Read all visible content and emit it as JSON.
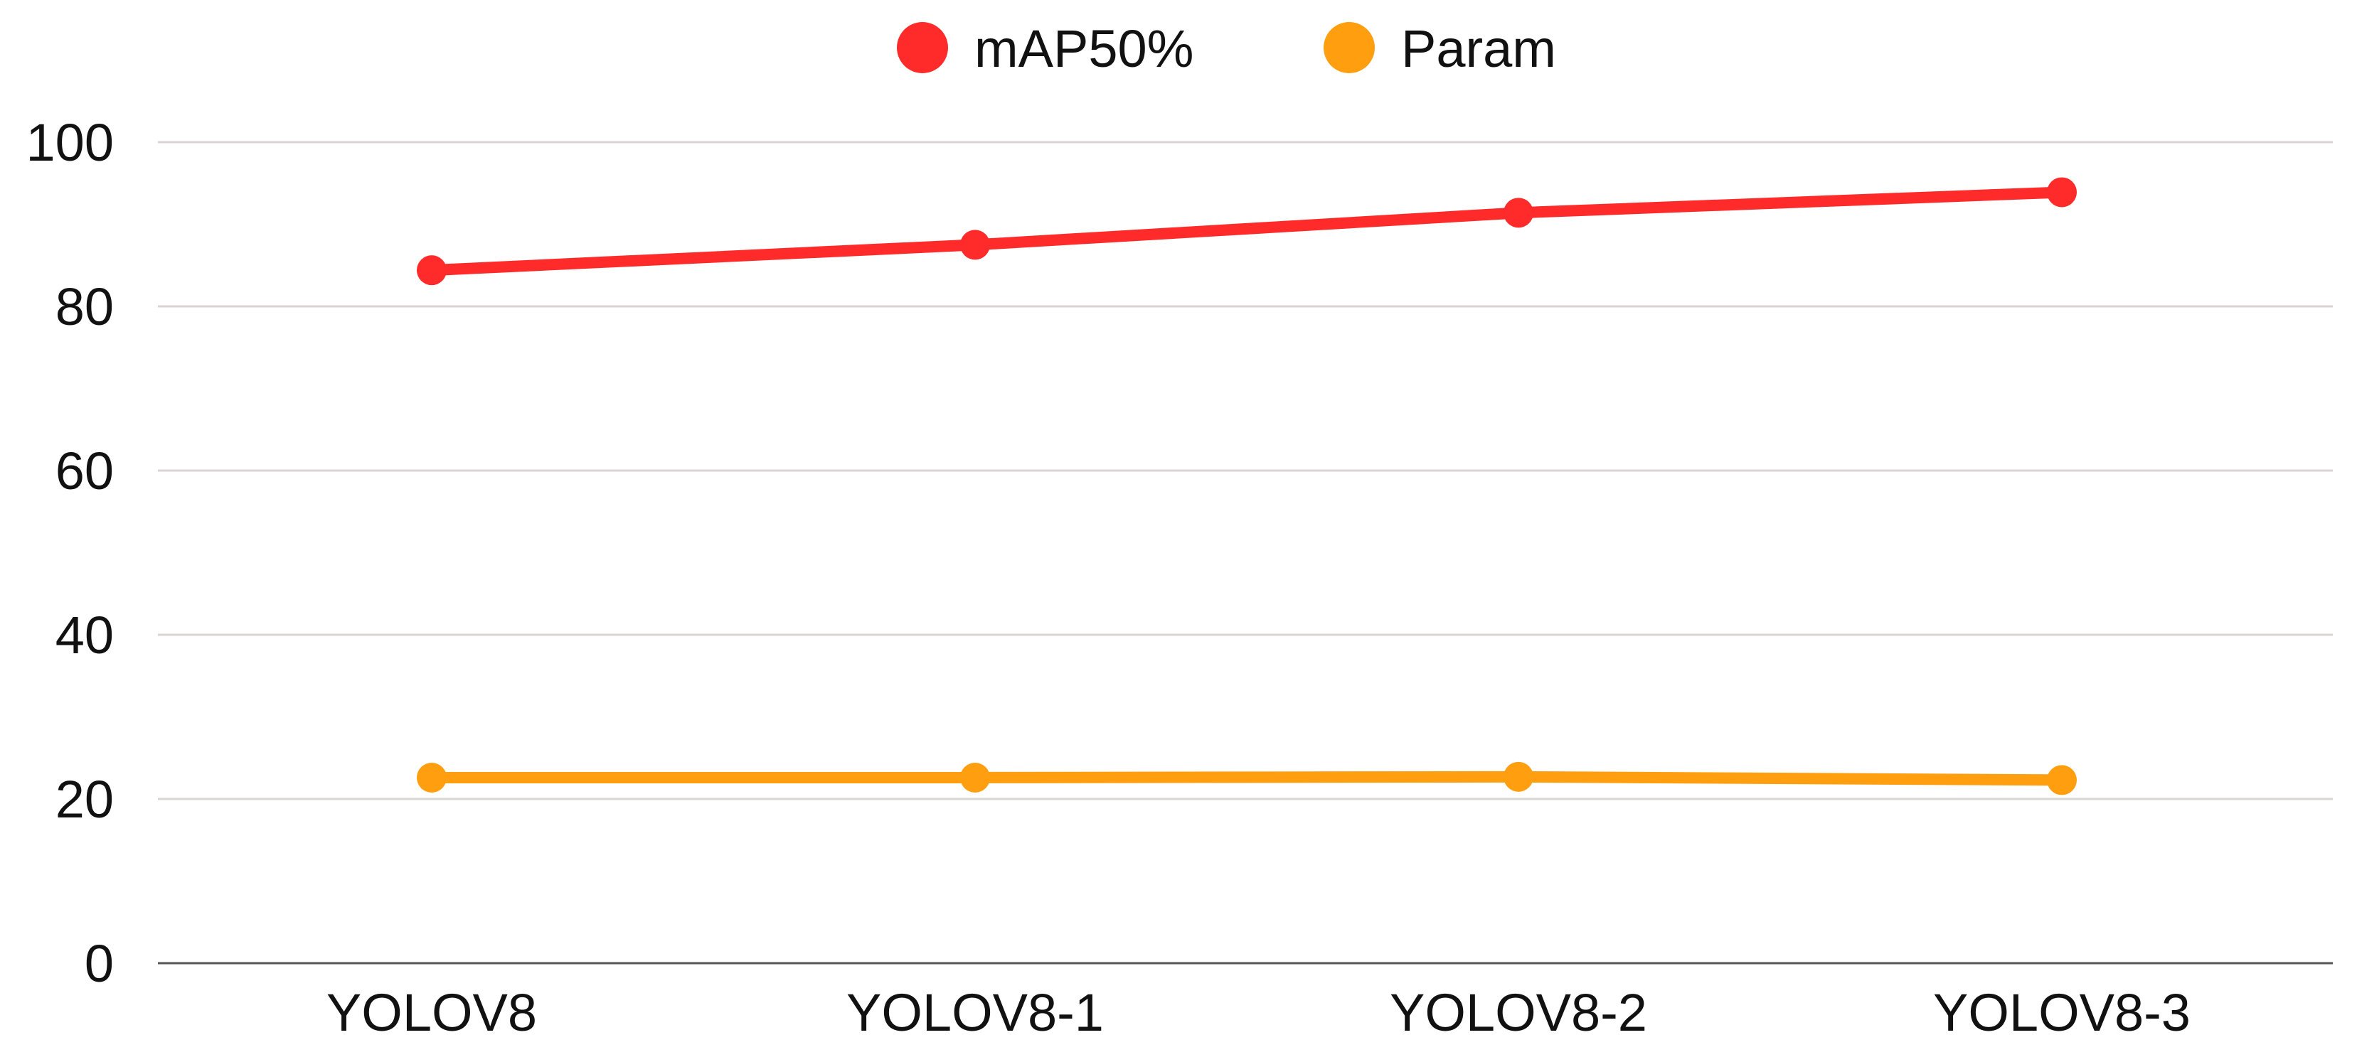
{
  "chart_data": {
    "type": "line",
    "categories": [
      "YOLOV8",
      "YOLOV8-1",
      "YOLOV8-2",
      "YOLOV8-3"
    ],
    "series": [
      {
        "name": "mAP50%",
        "values": [
          84.4,
          87.5,
          91.4,
          93.9
        ],
        "color": "#ff2a2a"
      },
      {
        "name": "Param",
        "values": [
          22.6,
          22.6,
          22.7,
          22.3
        ],
        "color": "#ff9e0f"
      }
    ],
    "ylim": [
      0,
      100
    ],
    "yticks": [
      0,
      20,
      40,
      60,
      80,
      100
    ],
    "grid": true,
    "legend_position": "top-center",
    "title": "",
    "xlabel": "",
    "ylabel": ""
  }
}
